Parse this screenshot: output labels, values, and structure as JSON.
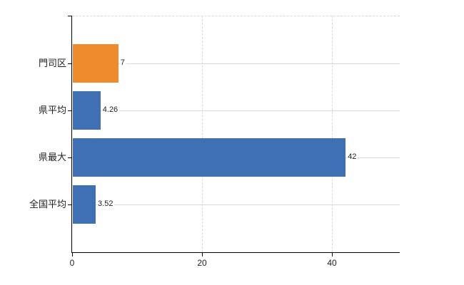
{
  "chart_data": {
    "type": "bar",
    "orientation": "horizontal",
    "title": "",
    "categories": [
      "門司区",
      "県平均",
      "県最大",
      "全国平均"
    ],
    "values": [
      7,
      4.26,
      42,
      3.52
    ],
    "value_labels": [
      "7",
      "4.26",
      "42",
      "3.52"
    ],
    "bar_colors": [
      "#ee8c2d",
      "#3f70b3",
      "#3f70b3",
      "#3f70b3"
    ],
    "x_tick_labels": [
      "0",
      "20",
      "40"
    ],
    "x_tick_values": [
      0,
      20,
      40
    ],
    "xlim": [
      0,
      50.4
    ],
    "grid": {
      "vertical_style": "dashed",
      "horizontal_style": "solid",
      "color": "#d9d9d9"
    },
    "legend": "none",
    "axis_color": "#000000",
    "text_color": "#222222",
    "background_color": "#ffffff"
  }
}
